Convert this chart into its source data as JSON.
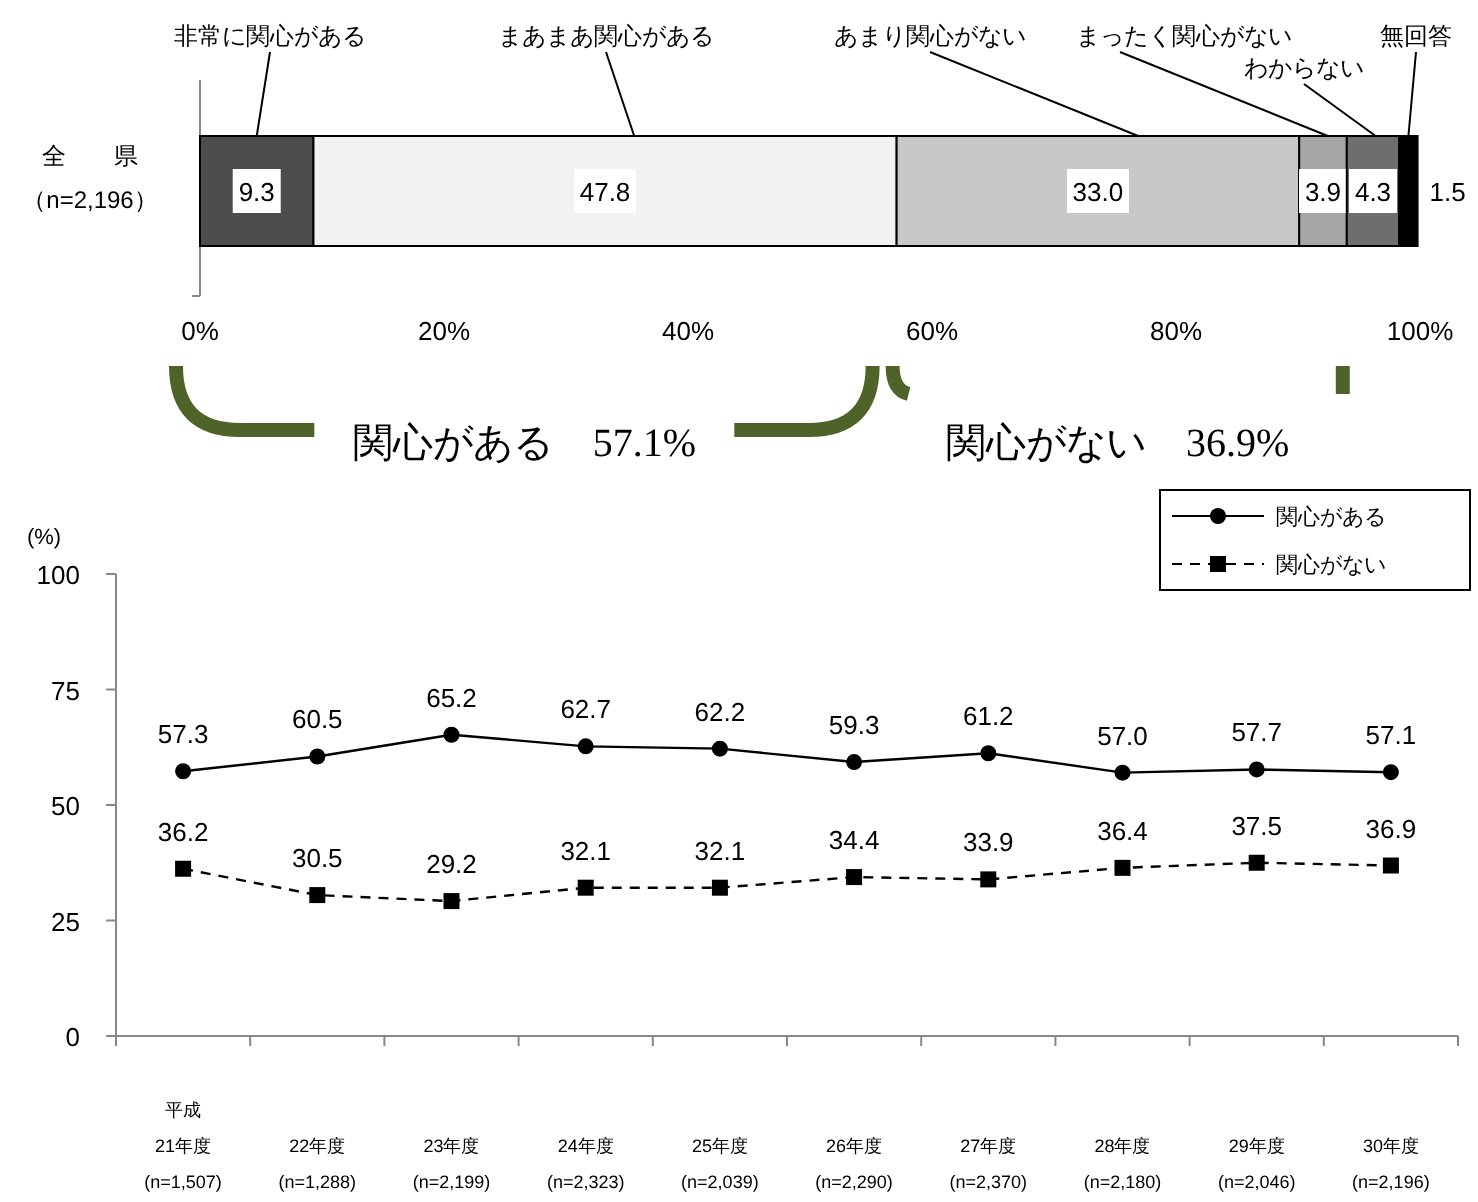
{
  "chart_data": [
    {
      "type": "bar",
      "orientation": "horizontal",
      "stacked": true,
      "categories": [
        "全　　県（n=2,196）"
      ],
      "xlim": [
        0,
        100
      ],
      "xticks": [
        {
          "value": 0,
          "label": "0%"
        },
        {
          "value": 20,
          "label": "20%"
        },
        {
          "value": 40,
          "label": "40%"
        },
        {
          "value": 60,
          "label": "60%"
        },
        {
          "value": 80,
          "label": "80%"
        },
        {
          "value": 100,
          "label": "100%"
        }
      ],
      "series": [
        {
          "name": "非常に関心がある",
          "color": "#4d4d4d",
          "values": [
            9.3
          ],
          "value_labels": [
            "9.3"
          ]
        },
        {
          "name": "まあまあ関心がある",
          "color": "#f2f2f2",
          "values": [
            47.8
          ],
          "value_labels": [
            "47.8"
          ]
        },
        {
          "name": "あまり関心がない",
          "color": "#c8c8c8",
          "values": [
            33.0
          ],
          "value_labels": [
            "33.0"
          ]
        },
        {
          "name": "まったく関心がない",
          "color": "#a6a6a6",
          "values": [
            3.9
          ],
          "value_labels": [
            "3.9"
          ]
        },
        {
          "name": "わからない",
          "color": "#6e6e6e",
          "values": [
            4.3
          ],
          "value_labels": [
            "4.3"
          ]
        },
        {
          "name": "無回答",
          "color": "#000000",
          "values": [
            1.5
          ],
          "value_labels": [
            "1.5"
          ]
        }
      ],
      "data_labels": true,
      "annotations": [
        "関心がある　57.1%",
        "関心がない　36.9%"
      ]
    },
    {
      "type": "line",
      "categories": [
        "平成\n21年度\n(n=1,507)",
        "22年度\n(n=1,288)",
        "23年度\n(n=2,199)",
        "24年度\n(n=2,323)",
        "25年度\n(n=2,039)",
        "26年度\n(n=2,290)",
        "27年度\n(n=2,370)",
        "28年度\n(n=2,180)",
        "29年度\n(n=2,046)",
        "30年度\n(n=2,196)"
      ],
      "ylabel": "(%)",
      "ylim": [
        0,
        100
      ],
      "yticks": [
        0,
        25,
        50,
        75,
        100
      ],
      "legend": "top right",
      "data_labels": true,
      "series": [
        {
          "name": "関心がある",
          "color": "#000000",
          "marker": "circle",
          "line_style": "solid",
          "values": [
            57.3,
            60.5,
            65.2,
            62.7,
            62.2,
            59.3,
            61.2,
            57.0,
            57.7,
            57.1
          ],
          "value_labels": [
            "57.3",
            "60.5",
            "65.2",
            "62.7",
            "62.2",
            "59.3",
            "61.2",
            "57.0",
            "57.7",
            "57.1"
          ]
        },
        {
          "name": "関心がない",
          "color": "#000000",
          "marker": "square",
          "line_style": "dashed",
          "values": [
            36.2,
            30.5,
            29.2,
            32.1,
            32.1,
            34.4,
            33.9,
            36.4,
            37.5,
            36.9
          ],
          "value_labels": [
            "36.2",
            "30.5",
            "29.2",
            "32.1",
            "32.1",
            "34.4",
            "33.9",
            "36.4",
            "37.5",
            "36.9"
          ]
        }
      ]
    }
  ]
}
